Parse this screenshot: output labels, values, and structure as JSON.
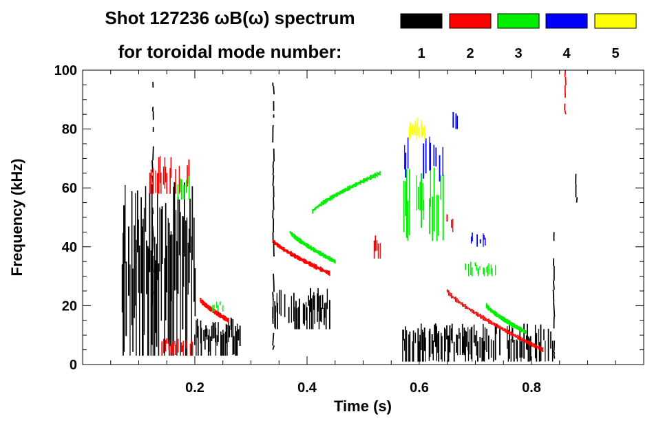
{
  "chart_data": {
    "type": "heatmap",
    "title_line1": "Shot 127236 ωB(ω) spectrum",
    "title_line2": "for toroidal mode number:",
    "xlabel": "Time (s)",
    "ylabel": "Frequency (kHz)",
    "xlim": [
      0.0,
      1.0
    ],
    "ylim": [
      0,
      100
    ],
    "x_ticks": [
      {
        "value": 0.2,
        "label": "0.2"
      },
      {
        "value": 0.4,
        "label": "0.4"
      },
      {
        "value": 0.6,
        "label": "0.6"
      },
      {
        "value": 0.8,
        "label": "0.8"
      }
    ],
    "y_ticks": [
      {
        "value": 0,
        "label": "0"
      },
      {
        "value": 20,
        "label": "20"
      },
      {
        "value": 40,
        "label": "40"
      },
      {
        "value": 60,
        "label": "60"
      },
      {
        "value": 80,
        "label": "80"
      },
      {
        "value": 100,
        "label": "100"
      }
    ],
    "legend": [
      {
        "mode": "1",
        "color": "#000000"
      },
      {
        "mode": "2",
        "color": "#ff0000"
      },
      {
        "mode": "3",
        "color": "#00ee00"
      },
      {
        "mode": "4",
        "color": "#0000ff"
      },
      {
        "mode": "5",
        "color": "#ffff00"
      }
    ],
    "features": [
      {
        "mode": 1,
        "kind": "blob",
        "t": [
          0.07,
          0.2
        ],
        "f": [
          3,
          62
        ],
        "density": 0.9
      },
      {
        "mode": 1,
        "kind": "blob",
        "t": [
          0.2,
          0.28
        ],
        "f": [
          3,
          16
        ],
        "density": 0.85
      },
      {
        "mode": 1,
        "kind": "blob",
        "t": [
          0.34,
          0.44
        ],
        "f": [
          12,
          26
        ],
        "density": 0.8
      },
      {
        "mode": 1,
        "kind": "blob",
        "t": [
          0.57,
          0.84
        ],
        "f": [
          1,
          14
        ],
        "density": 0.75
      },
      {
        "mode": 1,
        "kind": "vline",
        "t": 0.34,
        "f": [
          5,
          100
        ]
      },
      {
        "mode": 1,
        "kind": "vline",
        "t": 0.125,
        "f": [
          20,
          96
        ]
      },
      {
        "mode": 1,
        "kind": "vline",
        "t": 0.84,
        "f": [
          2,
          45
        ]
      },
      {
        "mode": 1,
        "kind": "vline",
        "t": 0.88,
        "f": [
          55,
          65
        ]
      },
      {
        "mode": 2,
        "kind": "chirp",
        "t": [
          0.21,
          0.26
        ],
        "f": [
          22,
          15
        ]
      },
      {
        "mode": 2,
        "kind": "chirp",
        "t": [
          0.34,
          0.44
        ],
        "f": [
          42,
          31
        ]
      },
      {
        "mode": 2,
        "kind": "chirp",
        "t": [
          0.65,
          0.82
        ],
        "f": [
          25,
          5
        ]
      },
      {
        "mode": 2,
        "kind": "blob",
        "t": [
          0.12,
          0.19
        ],
        "f": [
          58,
          72
        ],
        "density": 0.6
      },
      {
        "mode": 2,
        "kind": "blob",
        "t": [
          0.14,
          0.2
        ],
        "f": [
          3,
          9
        ],
        "density": 0.6
      },
      {
        "mode": 2,
        "kind": "blob",
        "t": [
          0.52,
          0.53
        ],
        "f": [
          36,
          45
        ],
        "density": 0.7
      },
      {
        "mode": 2,
        "kind": "blob",
        "t": [
          0.65,
          0.66
        ],
        "f": [
          45,
          52
        ],
        "density": 0.7
      },
      {
        "mode": 2,
        "kind": "vline",
        "t": 0.86,
        "f": [
          85,
          100
        ]
      },
      {
        "mode": 3,
        "kind": "chirp",
        "t": [
          0.41,
          0.53
        ],
        "f": [
          52,
          65
        ]
      },
      {
        "mode": 3,
        "kind": "chirp",
        "t": [
          0.37,
          0.45
        ],
        "f": [
          45,
          35
        ]
      },
      {
        "mode": 3,
        "kind": "chirp",
        "t": [
          0.72,
          0.79
        ],
        "f": [
          20,
          11
        ]
      },
      {
        "mode": 3,
        "kind": "blob",
        "t": [
          0.57,
          0.65
        ],
        "f": [
          42,
          68
        ],
        "density": 0.45
      },
      {
        "mode": 3,
        "kind": "blob",
        "t": [
          0.68,
          0.74
        ],
        "f": [
          30,
          35
        ],
        "density": 0.5
      },
      {
        "mode": 3,
        "kind": "blob",
        "t": [
          0.17,
          0.19
        ],
        "f": [
          56,
          66
        ],
        "density": 0.5
      },
      {
        "mode": 3,
        "kind": "blob",
        "t": [
          0.23,
          0.25
        ],
        "f": [
          18,
          22
        ],
        "density": 0.4
      },
      {
        "mode": 4,
        "kind": "blob",
        "t": [
          0.57,
          0.66
        ],
        "f": [
          62,
          78
        ],
        "density": 0.25
      },
      {
        "mode": 4,
        "kind": "blob",
        "t": [
          0.66,
          0.67
        ],
        "f": [
          80,
          88
        ],
        "density": 0.7
      },
      {
        "mode": 4,
        "kind": "blob",
        "t": [
          0.69,
          0.72
        ],
        "f": [
          40,
          45
        ],
        "density": 0.3
      },
      {
        "mode": 5,
        "kind": "blob",
        "t": [
          0.58,
          0.61
        ],
        "f": [
          76,
          84
        ],
        "density": 0.8
      }
    ]
  }
}
